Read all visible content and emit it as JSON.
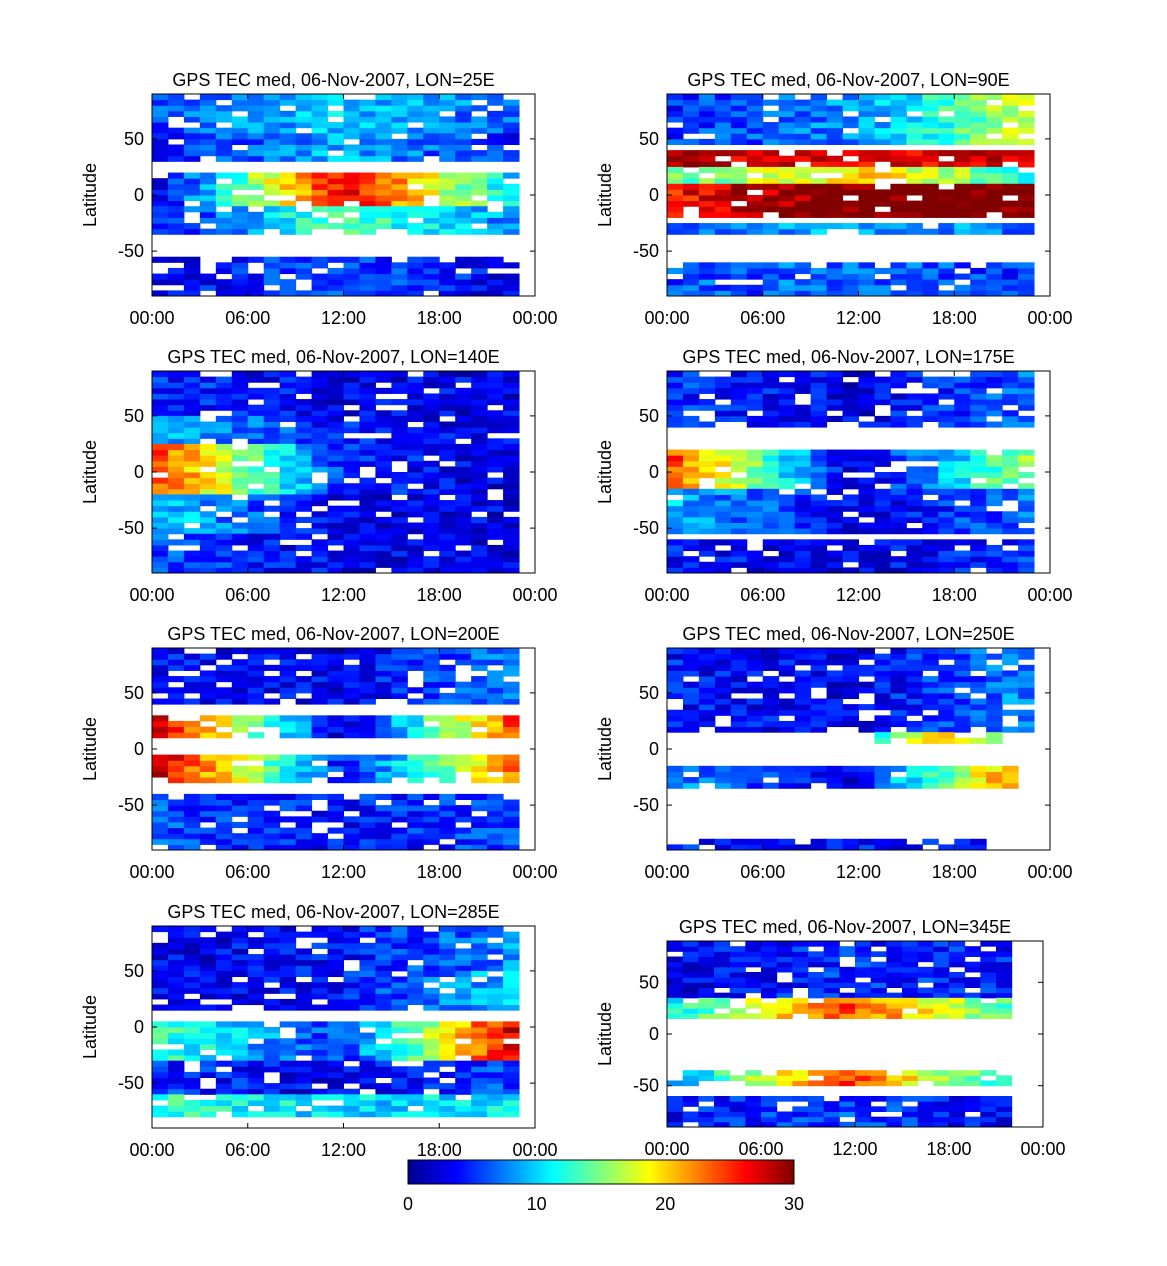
{
  "figure": {
    "common_x_ticks": [
      "00:00",
      "06:00",
      "12:00",
      "18:00",
      "00:00"
    ]
  },
  "chart_data": [
    {
      "type": "heatmap",
      "title": "GPS TEC med, 06-Nov-2007, LON=25E",
      "ylabel": "Latitude",
      "x_ticks": [
        "00:00",
        "06:00",
        "12:00",
        "18:00",
        "00:00"
      ],
      "x_range_hours": [
        0,
        24
      ],
      "y_ticks": [
        50,
        0,
        -50
      ],
      "y_range": [
        -90,
        90
      ],
      "bands": [
        {
          "lat": [
            55,
            90
          ],
          "hours": [
            0,
            23
          ],
          "tec": [
            6,
            10,
            6
          ]
        },
        {
          "lat": [
            30,
            55
          ],
          "hours": [
            0,
            23
          ],
          "tec": [
            4,
            9,
            4
          ]
        },
        {
          "lat": [
            -10,
            20
          ],
          "hours": [
            0,
            23
          ],
          "tec": [
            3,
            27,
            9
          ]
        },
        {
          "lat": [
            -35,
            -10
          ],
          "hours": [
            0,
            23
          ],
          "tec": [
            4,
            14,
            7
          ]
        },
        {
          "lat": [
            -90,
            -55
          ],
          "hours": [
            0,
            23
          ],
          "tec": [
            3,
            6,
            3
          ]
        }
      ]
    },
    {
      "type": "heatmap",
      "title": "GPS TEC med, 06-Nov-2007, LON=90E",
      "ylabel": "Latitude",
      "x_ticks": [
        "00:00",
        "06:00",
        "12:00",
        "18:00",
        "00:00"
      ],
      "x_range_hours": [
        0,
        24
      ],
      "y_ticks": [
        50,
        0,
        -50
      ],
      "y_range": [
        -90,
        90
      ],
      "bands": [
        {
          "lat": [
            45,
            90
          ],
          "hours": [
            0,
            23
          ],
          "tec": [
            5,
            8,
            18
          ]
        },
        {
          "lat": [
            25,
            40
          ],
          "hours": [
            0,
            23
          ],
          "tec": [
            29,
            26,
            28
          ]
        },
        {
          "lat": [
            10,
            25
          ],
          "hours": [
            0,
            23
          ],
          "tec": [
            14,
            20,
            12
          ]
        },
        {
          "lat": [
            -20,
            10
          ],
          "hours": [
            0,
            23
          ],
          "tec": [
            26,
            31,
            31
          ]
        },
        {
          "lat": [
            -35,
            -25
          ],
          "hours": [
            0,
            23
          ],
          "tec": [
            7,
            9,
            7
          ]
        },
        {
          "lat": [
            -90,
            -60
          ],
          "hours": [
            0,
            23
          ],
          "tec": [
            6,
            7,
            5
          ]
        }
      ]
    },
    {
      "type": "heatmap",
      "title": "GPS TEC med, 06-Nov-2007, LON=140E",
      "ylabel": "Latitude",
      "x_ticks": [
        "00:00",
        "06:00",
        "12:00",
        "18:00",
        "00:00"
      ],
      "x_range_hours": [
        0,
        24
      ],
      "y_ticks": [
        50,
        0,
        -50
      ],
      "y_range": [
        -90,
        90
      ],
      "bands": [
        {
          "lat": [
            50,
            90
          ],
          "hours": [
            0,
            23
          ],
          "tec": [
            5,
            3,
            3
          ]
        },
        {
          "lat": [
            25,
            50
          ],
          "hours": [
            0,
            23
          ],
          "tec": [
            9,
            4,
            3
          ]
        },
        {
          "lat": [
            -20,
            25
          ],
          "hours": [
            0,
            23
          ],
          "tec": [
            24,
            5,
            2
          ]
        },
        {
          "lat": [
            -55,
            -20
          ],
          "hours": [
            0,
            23
          ],
          "tec": [
            10,
            3,
            3
          ]
        },
        {
          "lat": [
            -90,
            -55
          ],
          "hours": [
            0,
            23
          ],
          "tec": [
            6,
            3,
            3
          ]
        }
      ]
    },
    {
      "type": "heatmap",
      "title": "GPS TEC med, 06-Nov-2007, LON=175E",
      "ylabel": "Latitude",
      "x_ticks": [
        "00:00",
        "06:00",
        "12:00",
        "18:00",
        "00:00"
      ],
      "x_range_hours": [
        0,
        24
      ],
      "y_ticks": [
        50,
        0,
        -50
      ],
      "y_range": [
        -90,
        90
      ],
      "bands": [
        {
          "lat": [
            40,
            90
          ],
          "hours": [
            0,
            23
          ],
          "tec": [
            5,
            3,
            7
          ]
        },
        {
          "lat": [
            -15,
            20
          ],
          "hours": [
            0,
            23
          ],
          "tec": [
            24,
            2,
            17
          ]
        },
        {
          "lat": [
            -55,
            -15
          ],
          "hours": [
            0,
            23
          ],
          "tec": [
            9,
            3,
            7
          ]
        },
        {
          "lat": [
            -90,
            -60
          ],
          "hours": [
            0,
            23
          ],
          "tec": [
            4,
            3,
            5
          ]
        }
      ]
    },
    {
      "type": "heatmap",
      "title": "GPS TEC med, 06-Nov-2007, LON=200E",
      "ylabel": "Latitude",
      "x_ticks": [
        "00:00",
        "06:00",
        "12:00",
        "18:00",
        "00:00"
      ],
      "x_range_hours": [
        0,
        24
      ],
      "y_ticks": [
        50,
        0,
        -50
      ],
      "y_range": [
        -90,
        90
      ],
      "bands": [
        {
          "lat": [
            40,
            90
          ],
          "hours": [
            0,
            23
          ],
          "tec": [
            4,
            3,
            8
          ]
        },
        {
          "lat": [
            10,
            30
          ],
          "hours": [
            0,
            23
          ],
          "tec": [
            28,
            2,
            26
          ]
        },
        {
          "lat": [
            -30,
            -5
          ],
          "hours": [
            0,
            23
          ],
          "tec": [
            28,
            4,
            24
          ]
        },
        {
          "lat": [
            -90,
            -40
          ],
          "hours": [
            0,
            23
          ],
          "tec": [
            6,
            4,
            6
          ]
        }
      ]
    },
    {
      "type": "heatmap",
      "title": "GPS TEC med, 06-Nov-2007, LON=250E",
      "ylabel": "Latitude",
      "x_ticks": [
        "00:00",
        "06:00",
        "12:00",
        "18:00",
        "00:00"
      ],
      "x_range_hours": [
        0,
        24
      ],
      "y_ticks": [
        50,
        0,
        -50
      ],
      "y_range": [
        -90,
        90
      ],
      "bands": [
        {
          "lat": [
            15,
            90
          ],
          "hours": [
            0,
            23
          ],
          "tec": [
            4,
            3,
            8
          ]
        },
        {
          "lat": [
            5,
            15
          ],
          "hours": [
            13,
            21
          ],
          "tec": [
            12,
            22,
            10
          ]
        },
        {
          "lat": [
            -35,
            -15
          ],
          "hours": [
            0,
            22
          ],
          "tec": [
            8,
            3,
            24
          ]
        },
        {
          "lat": [
            -90,
            -80
          ],
          "hours": [
            0,
            20
          ],
          "tec": [
            4,
            4,
            4
          ]
        }
      ]
    },
    {
      "type": "heatmap",
      "title": "GPS TEC med, 06-Nov-2007, LON=285E",
      "ylabel": "Latitude",
      "x_ticks": [
        "00:00",
        "06:00",
        "12:00",
        "18:00",
        "00:00"
      ],
      "x_range_hours": [
        0,
        24
      ],
      "y_ticks": [
        50,
        0,
        -50
      ],
      "y_range": [
        -90,
        90
      ],
      "bands": [
        {
          "lat": [
            50,
            90
          ],
          "hours": [
            0,
            23
          ],
          "tec": [
            3,
            4,
            8
          ]
        },
        {
          "lat": [
            15,
            50
          ],
          "hours": [
            0,
            23
          ],
          "tec": [
            3,
            4,
            10
          ]
        },
        {
          "lat": [
            -30,
            5
          ],
          "hours": [
            0,
            23
          ],
          "tec": [
            13,
            5,
            29
          ]
        },
        {
          "lat": [
            -60,
            -30
          ],
          "hours": [
            0,
            23
          ],
          "tec": [
            5,
            3,
            6
          ]
        },
        {
          "lat": [
            -80,
            -60
          ],
          "hours": [
            0,
            23
          ],
          "tec": [
            13,
            10,
            11
          ]
        }
      ]
    },
    {
      "type": "heatmap",
      "title": "GPS TEC med, 06-Nov-2007, LON=345E",
      "ylabel": "Latitude",
      "x_ticks": [
        "00:00",
        "06:00",
        "12:00",
        "18:00",
        "00:00"
      ],
      "x_range_hours": [
        0,
        24
      ],
      "y_ticks": [
        50,
        0,
        -50
      ],
      "y_range": [
        -90,
        90
      ],
      "bands": [
        {
          "lat": [
            35,
            90
          ],
          "hours": [
            0,
            22
          ],
          "tec": [
            3,
            5,
            4
          ]
        },
        {
          "lat": [
            15,
            35
          ],
          "hours": [
            0,
            22
          ],
          "tec": [
            12,
            24,
            13
          ]
        },
        {
          "lat": [
            -50,
            -35
          ],
          "hours": [
            0,
            22
          ],
          "tec": [
            9,
            25,
            10
          ]
        },
        {
          "lat": [
            -90,
            -60
          ],
          "hours": [
            0,
            22
          ],
          "tec": [
            4,
            6,
            3
          ]
        }
      ]
    }
  ],
  "colorbar": {
    "range": [
      0,
      30
    ],
    "ticks": [
      "0",
      "10",
      "20",
      "30"
    ],
    "colormap": "jet"
  }
}
